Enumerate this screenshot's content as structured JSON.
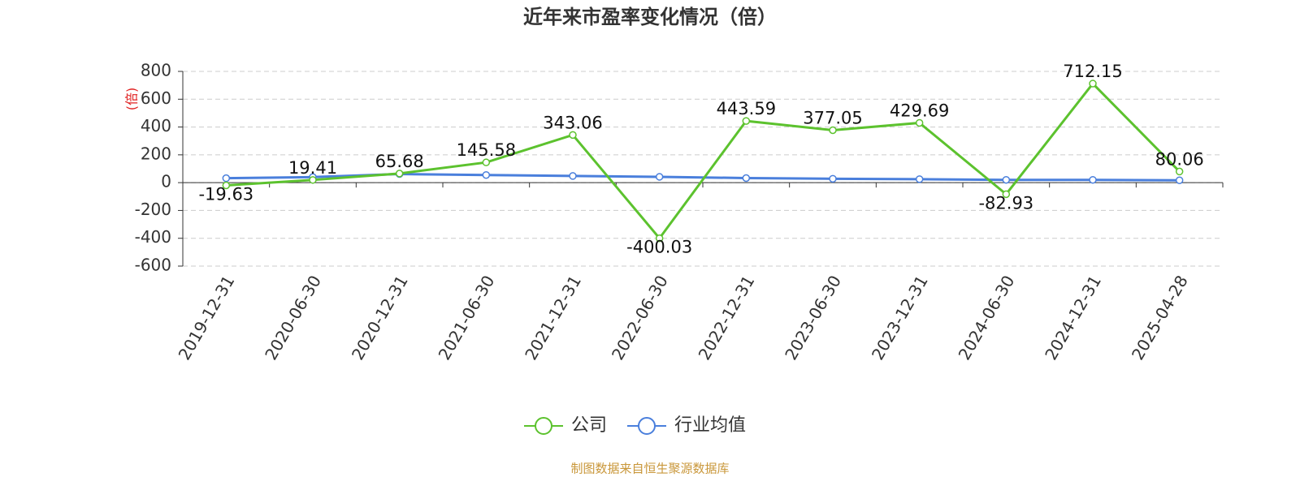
{
  "chart_data": {
    "type": "line",
    "title": "近年来市盈率变化情况（倍）",
    "y_label": "(倍)",
    "categories": [
      "2019-12-31",
      "2020-06-30",
      "2020-12-31",
      "2021-06-30",
      "2021-12-31",
      "2022-06-30",
      "2022-12-31",
      "2023-06-30",
      "2023-12-31",
      "2024-06-30",
      "2024-12-31",
      "2025-04-28"
    ],
    "series": [
      {
        "name": "公司",
        "color": "#5cc22e",
        "values": [
          -19.63,
          19.41,
          65.68,
          145.58,
          343.06,
          -400.03,
          443.59,
          377.05,
          429.69,
          -82.93,
          712.15,
          80.06
        ]
      },
      {
        "name": "行业均值",
        "color": "#4a7fdc",
        "values": [
          32,
          40,
          62,
          55,
          48,
          42,
          33,
          28,
          25,
          20,
          20,
          17
        ]
      }
    ],
    "ylim": [
      -600,
      800
    ],
    "yticks": [
      -600,
      -400,
      -200,
      0,
      200,
      400,
      600,
      800
    ],
    "grid": true,
    "source": "制图数据来自恒生聚源数据库"
  }
}
